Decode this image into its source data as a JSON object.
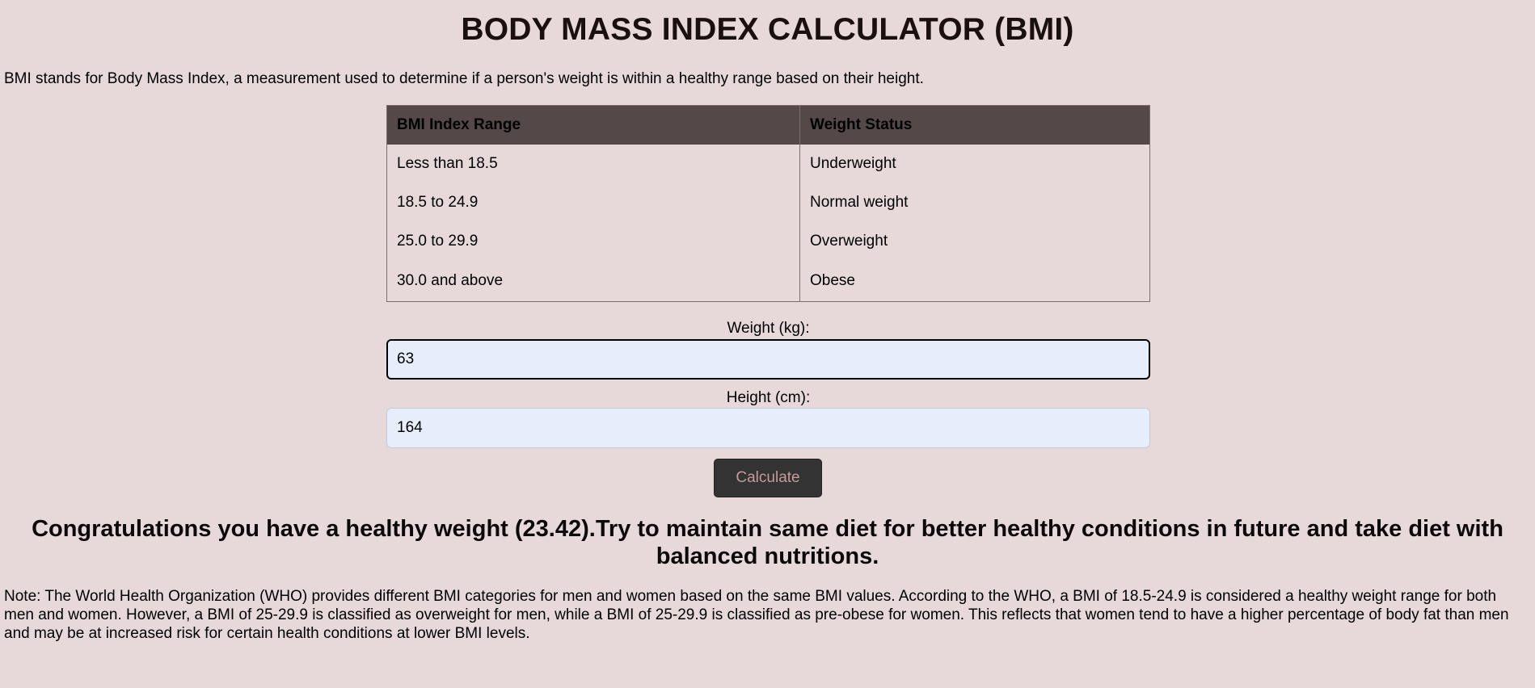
{
  "page": {
    "title": "BODY MASS INDEX CALCULATOR (BMI)",
    "intro": "BMI stands for Body Mass Index, a measurement used to determine if a person's weight is within a healthy range based on their height."
  },
  "table": {
    "headers": [
      "BMI Index Range",
      "Weight Status"
    ],
    "rows": [
      [
        "Less than 18.5",
        "Underweight"
      ],
      [
        "18.5 to 24.9",
        "Normal weight"
      ],
      [
        "25.0 to 29.9",
        "Overweight"
      ],
      [
        "30.0 and above",
        "Obese"
      ]
    ]
  },
  "form": {
    "weight_label": "Weight (kg):",
    "weight_value": "63",
    "height_label": "Height (cm):",
    "height_value": "164",
    "calculate_label": "Calculate"
  },
  "result": "Congratulations you have a healthy weight (23.42).Try to maintain same diet for better healthy conditions in future and take diet with balanced nutritions.",
  "note": "Note: The World Health Organization (WHO) provides different BMI categories for men and women based on the same BMI values. According to the WHO, a BMI of 18.5-24.9 is considered a healthy weight range for both men and women. However, a BMI of 25-29.9 is classified as overweight for men, while a BMI of 25-29.9 is classified as pre-obese for women. This reflects that women tend to have a higher percentage of body fat than men and may be at increased risk for certain health conditions at lower BMI levels.",
  "colors": {
    "background": "#e7d9d9",
    "table_header": "#544848",
    "input_bg": "#e7eefb",
    "button_bg": "#333333",
    "button_text": "#c49a9a"
  }
}
